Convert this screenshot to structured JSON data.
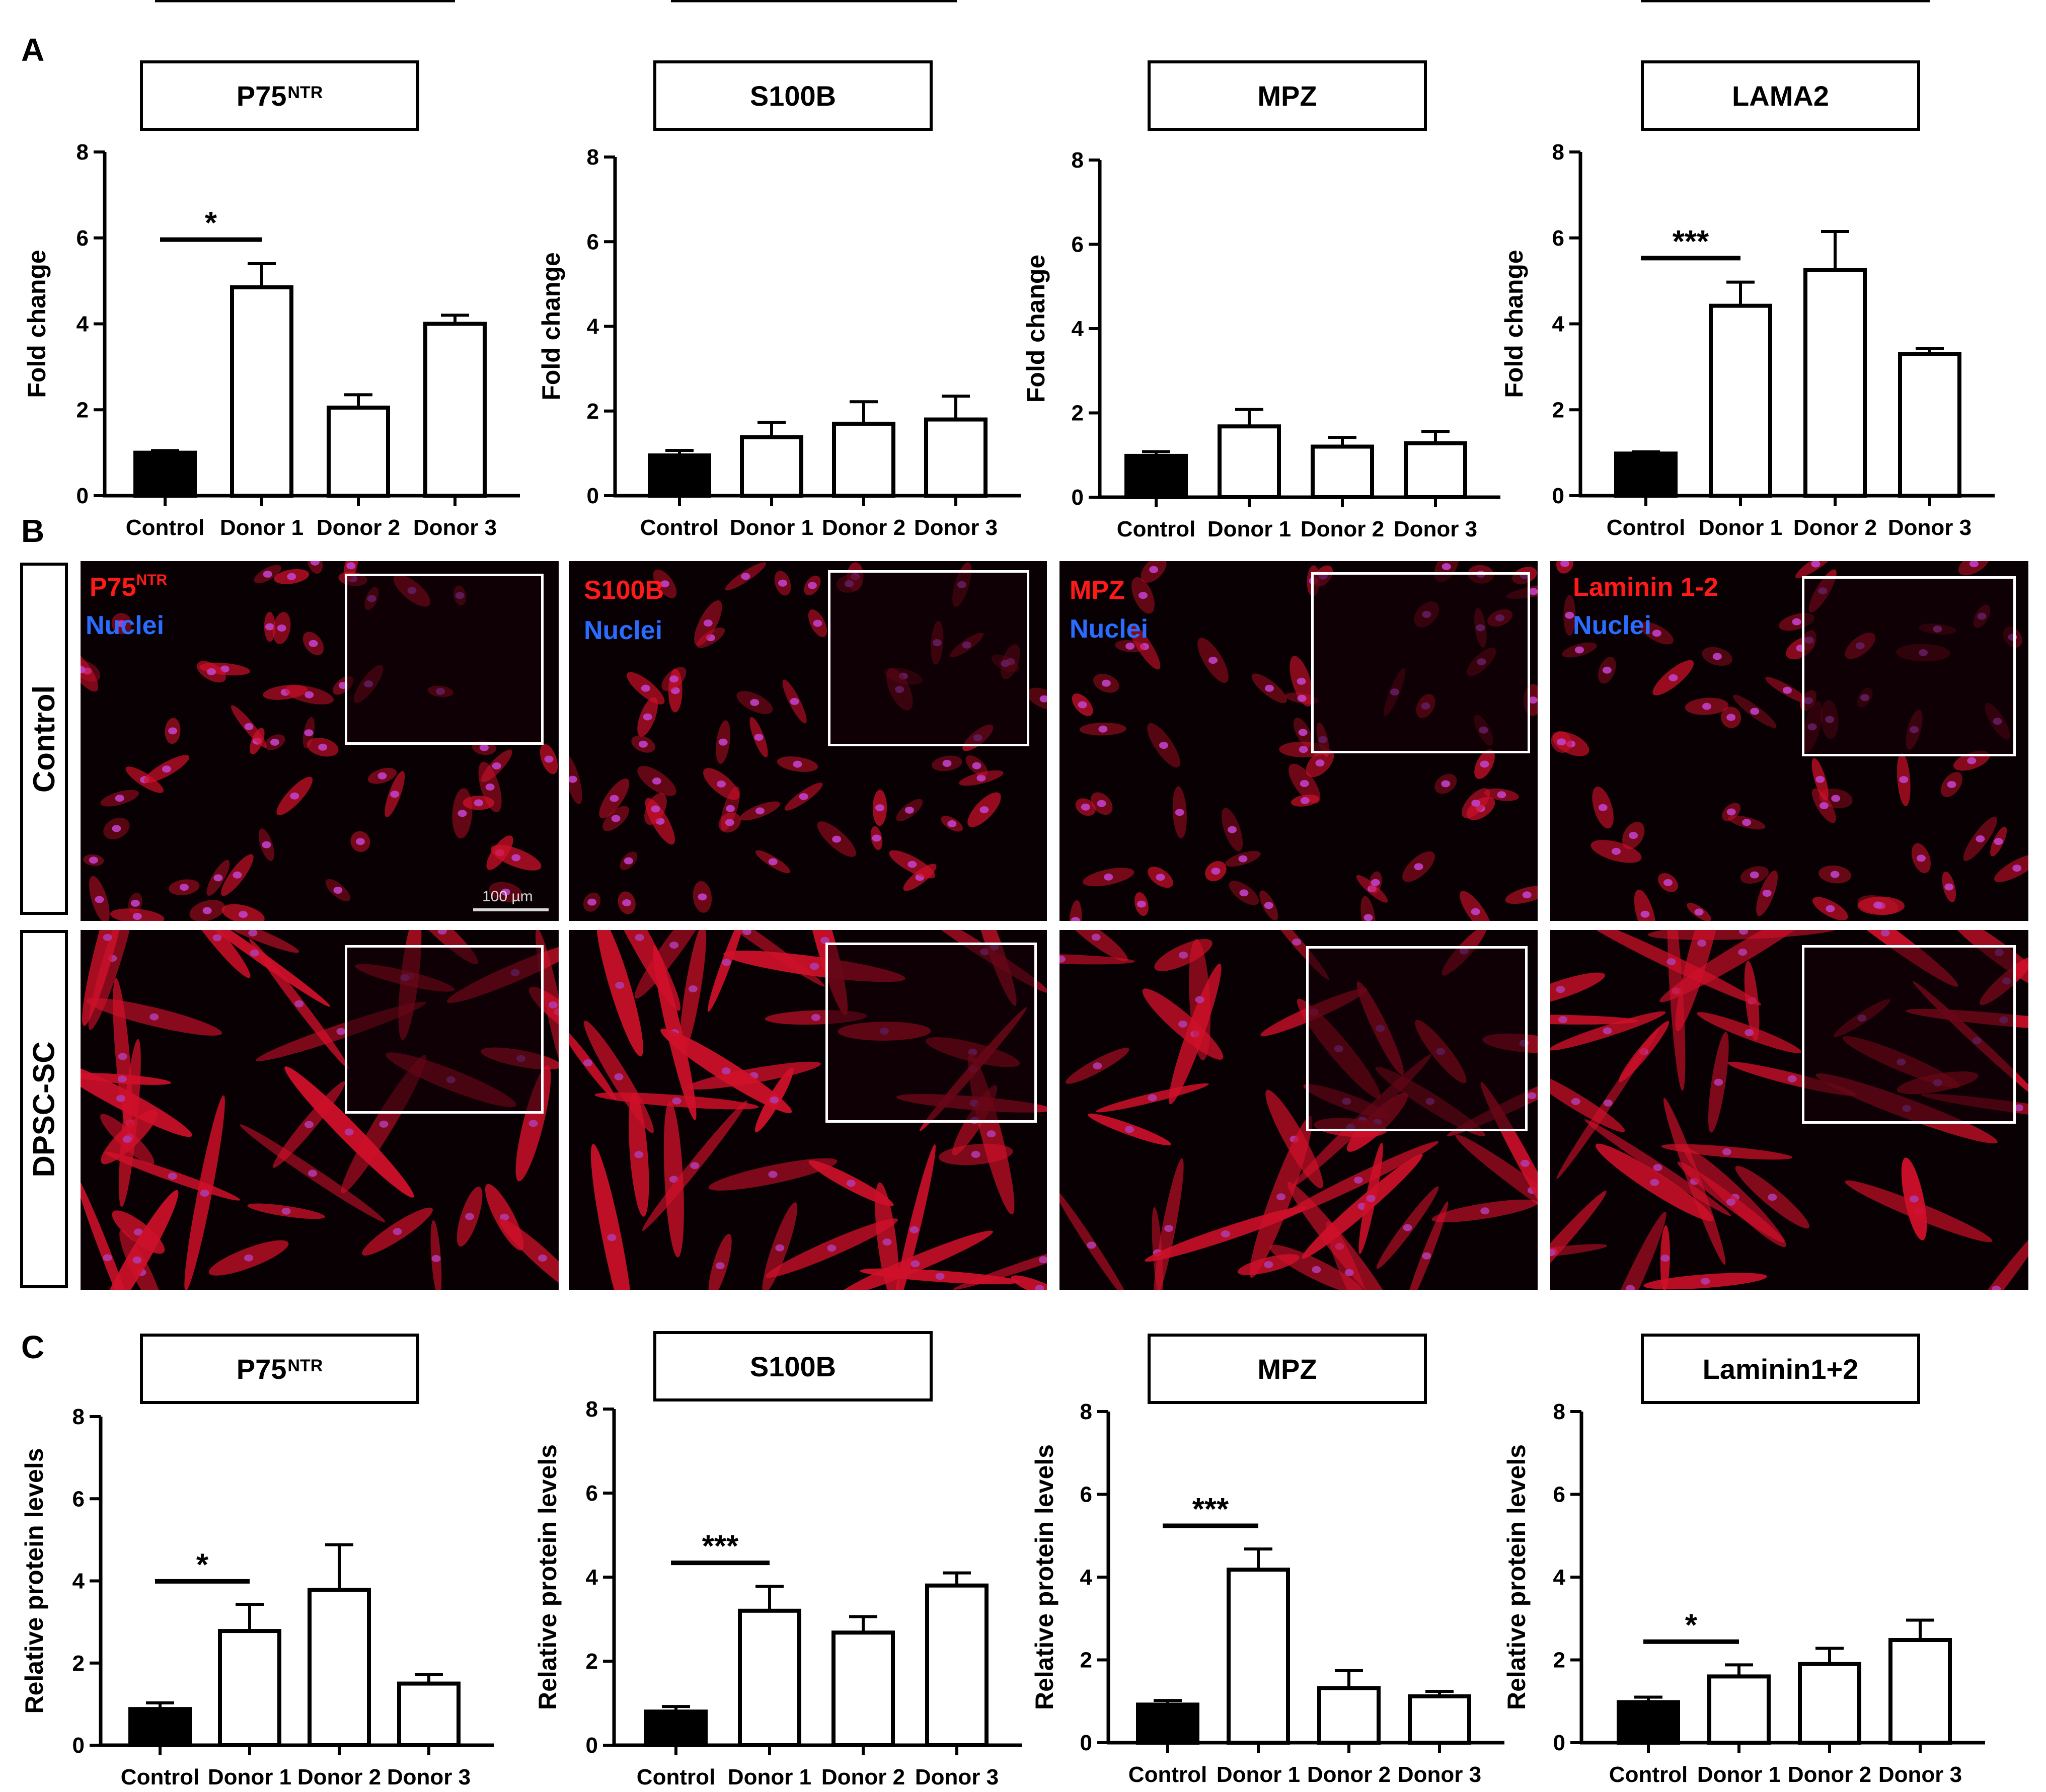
{
  "panels": {
    "a": "A",
    "b": "B",
    "c": "C"
  },
  "rows": {
    "control": "Control",
    "dpsc": "DPSC-SC"
  },
  "scale_bar": "100 µm",
  "micrographs": [
    {
      "stain": "P75",
      "stain_sup": "NTR",
      "nuclei": "Nuclei"
    },
    {
      "stain": "S100B",
      "stain_sup": "",
      "nuclei": "Nuclei"
    },
    {
      "stain": "MPZ",
      "stain_sup": "",
      "nuclei": "Nuclei"
    },
    {
      "stain": "Laminin 1-2",
      "stain_sup": "",
      "nuclei": "Nuclei"
    }
  ],
  "colors": {
    "stain_red": "#ff1a1a",
    "nuclei_blue": "#2a6cff",
    "bar_control": "#000000",
    "bar_donor": "#ffffff"
  },
  "chart_data": [
    {
      "type": "bar",
      "panel": "A",
      "title": "P75",
      "title_sup": "NTR",
      "ylabel": "Fold change",
      "categories": [
        "Control",
        "Donor 1",
        "Donor 2",
        "Donor 3"
      ],
      "values": [
        1.0,
        4.85,
        2.05,
        4.0
      ],
      "errors": [
        0.05,
        0.55,
        0.3,
        0.2
      ],
      "ylim": [
        0,
        8
      ],
      "yticks": [
        0,
        2,
        4,
        6,
        8
      ],
      "significance": [
        {
          "from": 0,
          "to": 1,
          "label": "*"
        },
        {
          "from": 0,
          "to": 2,
          "label": "**"
        },
        {
          "from": 0,
          "to": 3,
          "label": "***"
        }
      ]
    },
    {
      "type": "bar",
      "panel": "A",
      "title": "S100B",
      "title_sup": "",
      "ylabel": "Fold change",
      "categories": [
        "Control",
        "Donor 1",
        "Donor 2",
        "Donor 3"
      ],
      "values": [
        0.95,
        1.38,
        1.7,
        1.8
      ],
      "errors": [
        0.12,
        0.35,
        0.52,
        0.55
      ],
      "ylim": [
        0,
        8
      ],
      "yticks": [
        0,
        2,
        4,
        6,
        8
      ],
      "significance": []
    },
    {
      "type": "bar",
      "panel": "A",
      "title": "MPZ",
      "title_sup": "",
      "ylabel": "Fold change",
      "categories": [
        "Control",
        "Donor 1",
        "Donor 2",
        "Donor 3"
      ],
      "values": [
        0.98,
        1.68,
        1.2,
        1.28
      ],
      "errors": [
        0.1,
        0.4,
        0.22,
        0.28
      ],
      "ylim": [
        0,
        8
      ],
      "yticks": [
        0,
        2,
        4,
        6,
        8
      ],
      "significance": []
    },
    {
      "type": "bar",
      "panel": "A",
      "title": "LAMA2",
      "title_sup": "",
      "ylabel": "Fold change",
      "categories": [
        "Control",
        "Donor 1",
        "Donor 2",
        "Donor 3"
      ],
      "values": [
        0.98,
        4.42,
        5.25,
        3.3
      ],
      "errors": [
        0.04,
        0.55,
        0.9,
        0.12
      ],
      "ylim": [
        0,
        8
      ],
      "yticks": [
        0,
        2,
        4,
        6,
        8
      ],
      "significance": [
        {
          "from": 0,
          "to": 1,
          "label": "***"
        },
        {
          "from": 0,
          "to": 2,
          "label": "**"
        },
        {
          "from": 0,
          "to": 3,
          "label": "***"
        }
      ]
    },
    {
      "type": "bar",
      "panel": "C",
      "title": "P75",
      "title_sup": "NTR",
      "ylabel": "Relative protein levels",
      "categories": [
        "Control",
        "Donor 1",
        "Donor 2",
        "Donor 3"
      ],
      "values": [
        0.88,
        2.78,
        3.78,
        1.5
      ],
      "errors": [
        0.15,
        0.65,
        1.1,
        0.22
      ],
      "ylim": [
        0,
        8
      ],
      "yticks": [
        0,
        2,
        4,
        6,
        8
      ],
      "significance": [
        {
          "from": 0,
          "to": 1,
          "label": "*"
        },
        {
          "from": 0,
          "to": 2,
          "label": "*"
        },
        {
          "from": 0,
          "to": 3,
          "label": "*"
        }
      ]
    },
    {
      "type": "bar",
      "panel": "C",
      "title": "S100B",
      "title_sup": "",
      "ylabel": "Relative protein levels",
      "categories": [
        "Control",
        "Donor 1",
        "Donor 2",
        "Donor 3"
      ],
      "values": [
        0.8,
        3.2,
        2.68,
        3.8
      ],
      "errors": [
        0.12,
        0.58,
        0.38,
        0.3
      ],
      "ylim": [
        0,
        8
      ],
      "yticks": [
        0,
        2,
        4,
        6,
        8
      ],
      "significance": [
        {
          "from": 0,
          "to": 1,
          "label": "***"
        },
        {
          "from": 0,
          "to": 2,
          "label": "**"
        },
        {
          "from": 0,
          "to": 3,
          "label": "***"
        }
      ]
    },
    {
      "type": "bar",
      "panel": "C",
      "title": "MPZ",
      "title_sup": "",
      "ylabel": "Relative protein levels",
      "categories": [
        "Control",
        "Donor 1",
        "Donor 2",
        "Donor 3"
      ],
      "values": [
        0.92,
        4.18,
        1.32,
        1.12
      ],
      "errors": [
        0.1,
        0.5,
        0.42,
        0.12
      ],
      "ylim": [
        0,
        8
      ],
      "yticks": [
        0,
        2,
        4,
        6,
        8
      ],
      "significance": [
        {
          "from": 0,
          "to": 1,
          "label": "***"
        }
      ]
    },
    {
      "type": "bar",
      "panel": "C",
      "title": "Laminin1+2",
      "title_sup": "",
      "ylabel": "Relative protein levels",
      "categories": [
        "Control",
        "Donor 1",
        "Donor 2",
        "Donor 3"
      ],
      "values": [
        0.98,
        1.6,
        1.9,
        2.48
      ],
      "errors": [
        0.12,
        0.28,
        0.38,
        0.48
      ],
      "ylim": [
        0,
        8
      ],
      "yticks": [
        0,
        2,
        4,
        6,
        8
      ],
      "significance": [
        {
          "from": 0,
          "to": 1,
          "label": "*"
        },
        {
          "from": 0,
          "to": 2,
          "label": "*"
        },
        {
          "from": 0,
          "to": 3,
          "label": "*"
        }
      ]
    }
  ]
}
